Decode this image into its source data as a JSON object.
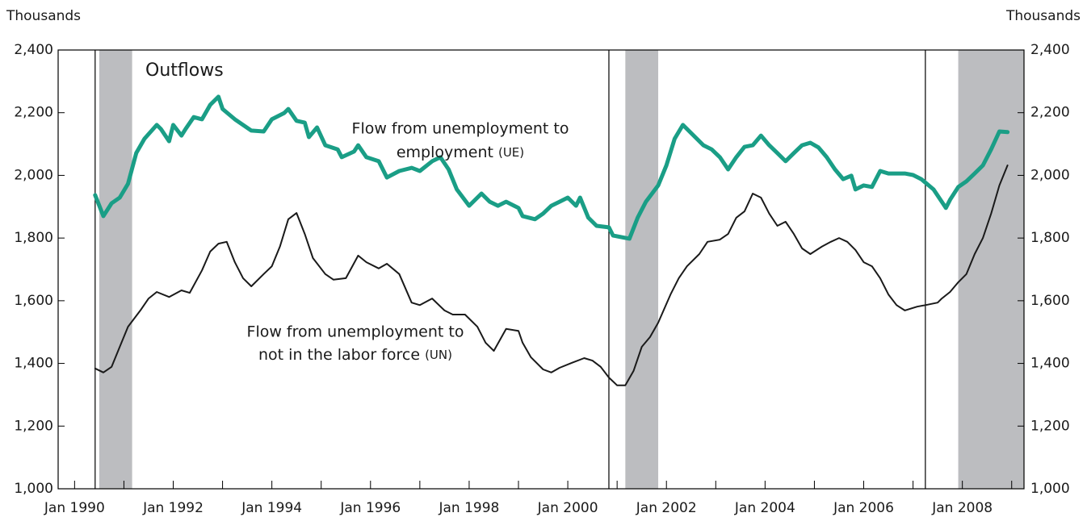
{
  "chart_data": {
    "type": "line",
    "axis_label_left": "Thousands",
    "axis_label_right": "Thousands",
    "annotations": [
      {
        "lines": [
          "Outflows"
        ]
      },
      {
        "lines": [
          "Flow from unemployment to",
          "employment"
        ],
        "tag": "(UE)"
      },
      {
        "lines": [
          "Flow from unemployment to",
          "not in the labor force"
        ],
        "tag": "(UN)"
      }
    ],
    "xlim": [
      "1989-09",
      "2009-04"
    ],
    "xticks": [
      {
        "value": "1990-01",
        "label": "Jan 1990"
      },
      {
        "value": "1992-01",
        "label": "Jan 1992"
      },
      {
        "value": "1994-01",
        "label": "Jan 1994"
      },
      {
        "value": "1996-01",
        "label": "Jan 1996"
      },
      {
        "value": "1998-01",
        "label": "Jan 1998"
      },
      {
        "value": "2000-01",
        "label": "Jan 2000"
      },
      {
        "value": "2002-01",
        "label": "Jan 2002"
      },
      {
        "value": "2004-01",
        "label": "Jan 2004"
      },
      {
        "value": "2006-01",
        "label": "Jan 2006"
      },
      {
        "value": "2008-01",
        "label": "Jan 2008"
      }
    ],
    "xticks_minor": [
      "1991-01",
      "1993-01",
      "1995-01",
      "1997-01",
      "1999-01",
      "2001-01",
      "2003-01",
      "2005-01",
      "2007-01",
      "2009-01"
    ],
    "ylim": [
      1000,
      2400
    ],
    "yticks": [
      {
        "value": 1000,
        "label": "1,000"
      },
      {
        "value": 1200,
        "label": "1,200"
      },
      {
        "value": 1400,
        "label": "1,400"
      },
      {
        "value": 1600,
        "label": "1,600"
      },
      {
        "value": 1800,
        "label": "1,800"
      },
      {
        "value": 2000,
        "label": "2,000"
      },
      {
        "value": 2200,
        "label": "2,200"
      },
      {
        "value": 2400,
        "label": "2,400"
      }
    ],
    "y2lim": [
      1000,
      2400
    ],
    "y2ticks": [
      {
        "value": 1000,
        "label": "1,000"
      },
      {
        "value": 1200,
        "label": "1,200"
      },
      {
        "value": 1400,
        "label": "1,400"
      },
      {
        "value": 1600,
        "label": "1,600"
      },
      {
        "value": 1800,
        "label": "1,800"
      },
      {
        "value": 2000,
        "label": "2,000"
      },
      {
        "value": 2200,
        "label": "2,200"
      },
      {
        "value": 2400,
        "label": "2,400"
      }
    ],
    "recessions": [
      [
        "1990-07",
        "1991-03"
      ],
      [
        "2001-03",
        "2001-11"
      ],
      [
        "2007-12",
        "2009-04"
      ]
    ],
    "recession_color": "#bcbdc0",
    "breaks": [
      "1990-06",
      "2000-11",
      "2007-04"
    ],
    "grid": false,
    "series": [
      {
        "color": "#1a9e86",
        "width": 5,
        "x": [
          "1990-06",
          "1990-08",
          "1990-10",
          "1990-12",
          "1991-02",
          "1991-04",
          "1991-06",
          "1991-09",
          "1991-10",
          "1991-12",
          "1992-01",
          "1992-03",
          "1992-04",
          "1992-06",
          "1992-08",
          "1992-10",
          "1992-12",
          "1993-01",
          "1993-04",
          "1993-06",
          "1993-08",
          "1993-11",
          "1994-01",
          "1994-04",
          "1994-05",
          "1994-07",
          "1994-09",
          "1994-10",
          "1994-12",
          "1995-02",
          "1995-05",
          "1995-06",
          "1995-09",
          "1995-10",
          "1995-12",
          "1996-03",
          "1996-05",
          "1996-08",
          "1996-11",
          "1997-01",
          "1997-04",
          "1997-06",
          "1997-08",
          "1997-10",
          "1998-01",
          "1998-04",
          "1998-06",
          "1998-08",
          "1998-10",
          "1999-01",
          "1999-02",
          "1999-05",
          "1999-07",
          "1999-09",
          "1999-11",
          "2000-01",
          "2000-03",
          "2000-04",
          "2000-06",
          "2000-08",
          "2000-11",
          "2000-12",
          "2001-04",
          "2001-06",
          "2001-08",
          "2001-11",
          "2002-01",
          "2002-03",
          "2002-05",
          "2002-07",
          "2002-10",
          "2002-12",
          "2003-02",
          "2003-04",
          "2003-06",
          "2003-08",
          "2003-10",
          "2003-12",
          "2004-02",
          "2004-04",
          "2004-06",
          "2004-08",
          "2004-10",
          "2004-12",
          "2005-02",
          "2005-04",
          "2005-06",
          "2005-08",
          "2005-10",
          "2005-11",
          "2006-01",
          "2006-03",
          "2006-05",
          "2006-07",
          "2006-09",
          "2006-11",
          "2007-01",
          "2007-03",
          "2007-06",
          "2007-09",
          "2007-10",
          "2007-12",
          "2008-02",
          "2008-04",
          "2008-06",
          "2008-08",
          "2008-10",
          "2008-12"
        ],
        "values": [
          1937,
          1870,
          1911,
          1929,
          1973,
          2071,
          2117,
          2161,
          2148,
          2109,
          2161,
          2127,
          2148,
          2186,
          2179,
          2225,
          2251,
          2212,
          2179,
          2161,
          2143,
          2140,
          2179,
          2199,
          2212,
          2174,
          2168,
          2122,
          2153,
          2096,
          2083,
          2058,
          2076,
          2096,
          2058,
          2045,
          1993,
          2014,
          2024,
          2014,
          2045,
          2058,
          2019,
          1955,
          1903,
          1942,
          1916,
          1903,
          1916,
          1896,
          1870,
          1860,
          1878,
          1903,
          1916,
          1929,
          1903,
          1929,
          1865,
          1839,
          1834,
          1808,
          1798,
          1865,
          1916,
          1968,
          2032,
          2117,
          2161,
          2135,
          2096,
          2083,
          2058,
          2019,
          2058,
          2091,
          2096,
          2127,
          2096,
          2071,
          2045,
          2071,
          2096,
          2104,
          2089,
          2058,
          2019,
          1988,
          1999,
          1955,
          1968,
          1963,
          2014,
          2006,
          2006,
          2006,
          2001,
          1988,
          1955,
          1896,
          1922,
          1963,
          1981,
          2006,
          2032,
          2083,
          2140,
          2138
        ]
      },
      {
        "color": "#1a1a1a",
        "width": 2,
        "x": [
          "1990-06",
          "1990-08",
          "1990-10",
          "1990-12",
          "1991-02",
          "1991-05",
          "1991-07",
          "1991-09",
          "1991-12",
          "1992-03",
          "1992-05",
          "1992-08",
          "1992-10",
          "1992-12",
          "1993-02",
          "1993-04",
          "1993-06",
          "1993-08",
          "1993-11",
          "1994-01",
          "1994-03",
          "1994-05",
          "1994-07",
          "1994-09",
          "1994-11",
          "1995-02",
          "1995-04",
          "1995-07",
          "1995-10",
          "1995-12",
          "1996-03",
          "1996-05",
          "1996-08",
          "1996-11",
          "1997-01",
          "1997-04",
          "1997-07",
          "1997-09",
          "1997-12",
          "1998-03",
          "1998-05",
          "1998-07",
          "1998-10",
          "1999-01",
          "1999-02",
          "1999-04",
          "1999-07",
          "1999-09",
          "1999-11",
          "2000-02",
          "2000-05",
          "2000-07",
          "2000-09",
          "2000-11",
          "2001-01",
          "2001-03",
          "2001-05",
          "2001-07",
          "2001-09",
          "2001-11",
          "2002-02",
          "2002-04",
          "2002-06",
          "2002-09",
          "2002-11",
          "2003-02",
          "2003-04",
          "2003-06",
          "2003-08",
          "2003-10",
          "2003-12",
          "2004-02",
          "2004-04",
          "2004-06",
          "2004-08",
          "2004-10",
          "2004-12",
          "2005-03",
          "2005-05",
          "2005-07",
          "2005-09",
          "2005-11",
          "2006-01",
          "2006-03",
          "2006-05",
          "2006-07",
          "2006-09",
          "2006-11",
          "2007-02",
          "2007-04",
          "2007-07",
          "2007-08",
          "2007-10",
          "2007-12",
          "2008-02",
          "2008-04",
          "2008-06",
          "2008-08",
          "2008-10",
          "2008-12"
        ],
        "values": [
          1384,
          1371,
          1389,
          1453,
          1517,
          1569,
          1607,
          1628,
          1612,
          1633,
          1625,
          1697,
          1757,
          1782,
          1788,
          1723,
          1672,
          1646,
          1685,
          1710,
          1774,
          1860,
          1880,
          1813,
          1736,
          1685,
          1667,
          1672,
          1744,
          1723,
          1703,
          1718,
          1685,
          1594,
          1586,
          1607,
          1569,
          1556,
          1556,
          1517,
          1466,
          1440,
          1510,
          1504,
          1466,
          1420,
          1381,
          1371,
          1386,
          1402,
          1417,
          1409,
          1389,
          1355,
          1330,
          1330,
          1376,
          1453,
          1484,
          1530,
          1620,
          1672,
          1710,
          1749,
          1788,
          1795,
          1813,
          1865,
          1885,
          1942,
          1929,
          1878,
          1839,
          1852,
          1813,
          1767,
          1749,
          1774,
          1788,
          1800,
          1788,
          1762,
          1723,
          1710,
          1672,
          1620,
          1586,
          1569,
          1581,
          1586,
          1594,
          1607,
          1628,
          1659,
          1685,
          1749,
          1800,
          1878,
          1968,
          2032
        ]
      }
    ]
  }
}
